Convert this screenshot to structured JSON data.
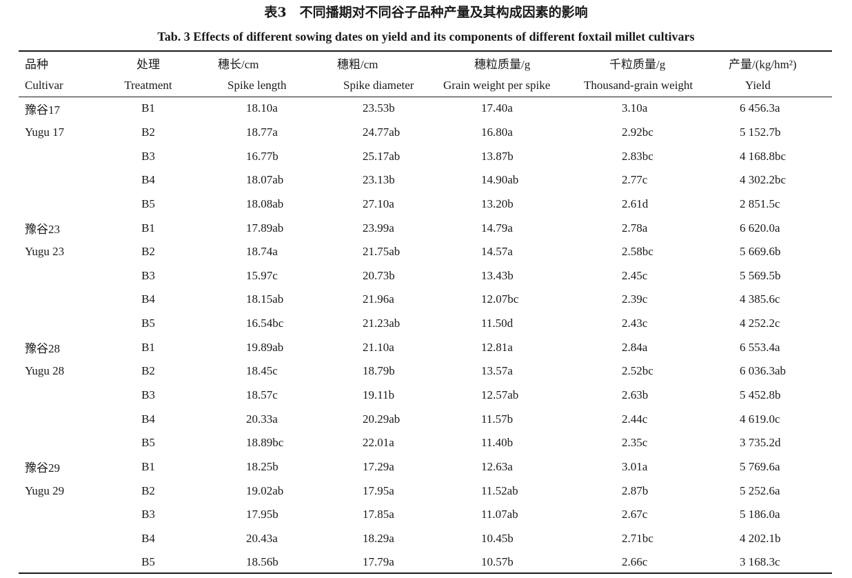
{
  "caption": {
    "cn": "表3　不同播期对不同谷子品种产量及其构成因素的影响",
    "en": "Tab. 3    Effects of different sowing dates on yield and its components of different foxtail millet cultivars"
  },
  "headers": {
    "cn": [
      "品种",
      "处理",
      "穗长/cm",
      "穗粗/cm",
      "穗粒质量/g",
      "千粒质量/g",
      "产量/(kg/hm²)"
    ],
    "en": [
      "Cultivar",
      "Treatment",
      "Spike length",
      "Spike diameter",
      "Grain weight per spike",
      "Thousand-grain weight",
      "Yield"
    ]
  },
  "groups": [
    {
      "cultivar_cn": "豫谷17",
      "cultivar_en": "Yugu 17",
      "rows": [
        [
          "B1",
          "18.10a",
          "23.53b",
          "17.40a",
          "3.10a",
          "6 456.3a"
        ],
        [
          "B2",
          "18.77a",
          "24.77ab",
          "16.80a",
          "2.92bc",
          "5 152.7b"
        ],
        [
          "B3",
          "16.77b",
          "25.17ab",
          "13.87b",
          "2.83bc",
          "4 168.8bc"
        ],
        [
          "B4",
          "18.07ab",
          "23.13b",
          "14.90ab",
          "2.77c",
          "4 302.2bc"
        ],
        [
          "B5",
          "18.08ab",
          "27.10a",
          "13.20b",
          "2.61d",
          "2 851.5c"
        ]
      ]
    },
    {
      "cultivar_cn": "豫谷23",
      "cultivar_en": "Yugu 23",
      "rows": [
        [
          "B1",
          "17.89ab",
          "23.99a",
          "14.79a",
          "2.78a",
          "6 620.0a"
        ],
        [
          "B2",
          "18.74a",
          "21.75ab",
          "14.57a",
          "2.58bc",
          "5 669.6b"
        ],
        [
          "B3",
          "15.97c",
          "20.73b",
          "13.43b",
          "2.45c",
          "5 569.5b"
        ],
        [
          "B4",
          "18.15ab",
          "21.96a",
          "12.07bc",
          "2.39c",
          "4 385.6c"
        ],
        [
          "B5",
          "16.54bc",
          "21.23ab",
          "11.50d",
          "2.43c",
          "4 252.2c"
        ]
      ]
    },
    {
      "cultivar_cn": "豫谷28",
      "cultivar_en": "Yugu 28",
      "rows": [
        [
          "B1",
          "19.89ab",
          "21.10a",
          "12.81a",
          "2.84a",
          "6 553.4a"
        ],
        [
          "B2",
          "18.45c",
          "18.79b",
          "13.57a",
          "2.52bc",
          "6 036.3ab"
        ],
        [
          "B3",
          "18.57c",
          "19.11b",
          "12.57ab",
          "2.63b",
          "5 452.8b"
        ],
        [
          "B4",
          "20.33a",
          "20.29ab",
          "11.57b",
          "2.44c",
          "4 619.0c"
        ],
        [
          "B5",
          "18.89bc",
          "22.01a",
          "11.40b",
          "2.35c",
          "3 735.2d"
        ]
      ]
    },
    {
      "cultivar_cn": "豫谷29",
      "cultivar_en": "Yugu 29",
      "rows": [
        [
          "B1",
          "18.25b",
          "17.29a",
          "12.63a",
          "3.01a",
          "5 769.6a"
        ],
        [
          "B2",
          "19.02ab",
          "17.95a",
          "11.52ab",
          "2.87b",
          "5 252.6a"
        ],
        [
          "B3",
          "17.95b",
          "17.85a",
          "11.07ab",
          "2.67c",
          "5 186.0a"
        ],
        [
          "B4",
          "20.43a",
          "18.29a",
          "10.45b",
          "2.71bc",
          "4 202.1b"
        ],
        [
          "B5",
          "18.56b",
          "17.79a",
          "10.57b",
          "2.66c",
          "3 168.3c"
        ]
      ]
    }
  ]
}
